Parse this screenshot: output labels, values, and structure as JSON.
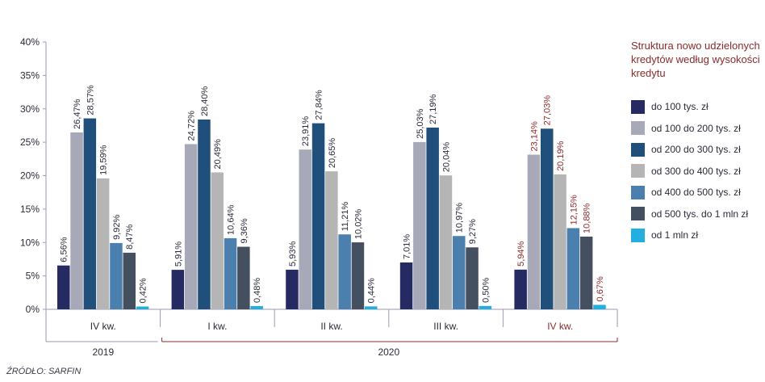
{
  "chart_data": {
    "type": "bar",
    "categories": [
      "IV kw.",
      "I kw.",
      "II kw.",
      "III kw.",
      "IV kw."
    ],
    "years": [
      {
        "label": "2019",
        "span": [
          0,
          0
        ]
      },
      {
        "label": "2020",
        "span": [
          1,
          4
        ]
      }
    ],
    "series": [
      {
        "name": "do 100 tys. zł",
        "color": "#262a63",
        "values": [
          6.56,
          5.91,
          5.93,
          7.01,
          5.94
        ],
        "labels": [
          "6,56%",
          "5,91%",
          "5,93%",
          "7,01%",
          "5,94%"
        ]
      },
      {
        "name": "od 100 do 200 tys. zł",
        "color": "#a7a9b8",
        "values": [
          26.47,
          24.72,
          23.91,
          25.03,
          23.14
        ],
        "labels": [
          "26,47%",
          "24,72%",
          "23,91%",
          "25,03%",
          "23,14%"
        ]
      },
      {
        "name": "od 200 do 300 tys. zł",
        "color": "#1f4f7a",
        "values": [
          28.57,
          28.4,
          27.84,
          27.19,
          27.03
        ],
        "labels": [
          "28,57%",
          "28,40%",
          "27,84%",
          "27,19%",
          "27,03%"
        ]
      },
      {
        "name": "od 300 do 400 tys. zł",
        "color": "#b5b5b5",
        "values": [
          19.59,
          20.49,
          20.65,
          20.04,
          20.19
        ],
        "labels": [
          "19,59%",
          "20,49%",
          "20,65%",
          "20,04%",
          "20,19%"
        ]
      },
      {
        "name": "od 400 do 500 tys. zł",
        "color": "#4a7fae",
        "values": [
          9.92,
          10.64,
          11.21,
          10.97,
          12.15
        ],
        "labels": [
          "9,92%",
          "10,64%",
          "11,21%",
          "10,97%",
          "12,15%"
        ]
      },
      {
        "name": "od 500 tys. do 1 mln zł",
        "color": "#44505f",
        "values": [
          8.47,
          9.36,
          10.02,
          9.27,
          10.88
        ],
        "labels": [
          "8,47%",
          "9,36%",
          "10,02%",
          "9,27%",
          "10,88%"
        ]
      },
      {
        "name": "od 1 mln zł",
        "color": "#23aee0",
        "values": [
          0.42,
          0.48,
          0.44,
          0.5,
          0.67
        ],
        "labels": [
          "0,42%",
          "0,48%",
          "0,44%",
          "0,50%",
          "0,67%"
        ]
      }
    ],
    "highlight_category_index": 4,
    "ylim": [
      0,
      40
    ],
    "yticks": [
      "0%",
      "5%",
      "10%",
      "15%",
      "20%",
      "25%",
      "30%",
      "35%",
      "40%"
    ],
    "grid": false,
    "legend_placement": "right",
    "colors": {
      "label_default": "#2a2a3a",
      "label_highlight": "#8b2a2a",
      "accent": "#8b2a2a"
    }
  },
  "legend": {
    "title": "Struktura nowo udzielonych kredytów według wysokości kredytu"
  },
  "source": "ŹRÓDŁO: SARFIN"
}
